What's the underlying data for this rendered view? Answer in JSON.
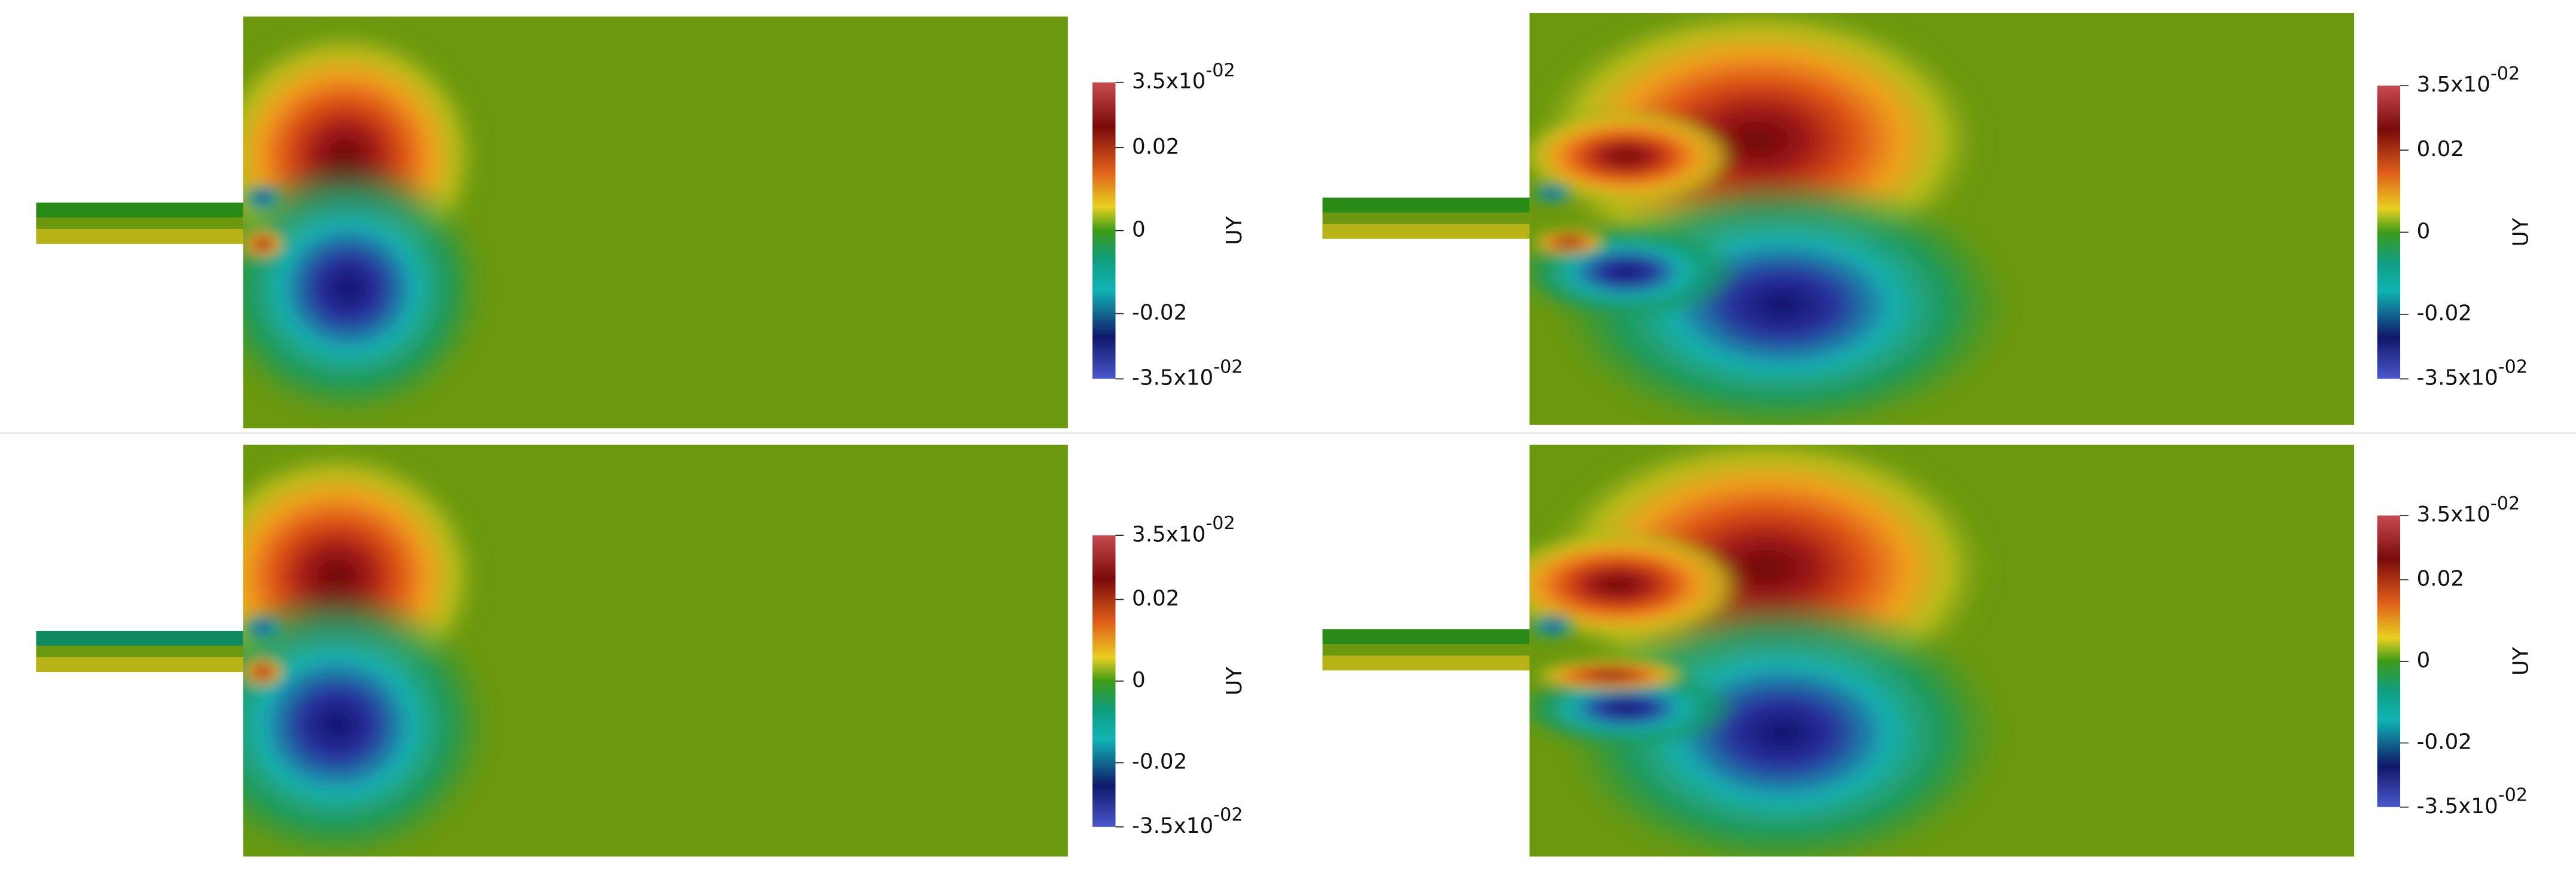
{
  "panels": [
    {
      "colorbar": {
        "title": "UY",
        "ticks": [
          {
            "base": "3.5x10",
            "exponent": "-02"
          },
          {
            "base": "0.02"
          },
          {
            "base": "0"
          },
          {
            "base": "-0.02"
          },
          {
            "base": "-3.5x10",
            "exponent": "-02"
          }
        ]
      }
    },
    {
      "colorbar": {
        "title": "UY",
        "ticks": [
          {
            "base": "3.5x10",
            "exponent": "-02"
          },
          {
            "base": "0.02"
          },
          {
            "base": "0"
          },
          {
            "base": "-0.02"
          },
          {
            "base": "-3.5x10",
            "exponent": "-02"
          }
        ]
      }
    },
    {
      "colorbar": {
        "title": "UY",
        "ticks": [
          {
            "base": "3.5x10",
            "exponent": "-02"
          },
          {
            "base": "0.02"
          },
          {
            "base": "0"
          },
          {
            "base": "-0.02"
          },
          {
            "base": "-3.5x10",
            "exponent": "-02"
          }
        ]
      }
    },
    {
      "colorbar": {
        "title": "UY",
        "ticks": [
          {
            "base": "3.5x10",
            "exponent": "-02"
          },
          {
            "base": "0.02"
          },
          {
            "base": "0"
          },
          {
            "base": "-0.02"
          },
          {
            "base": "-3.5x10",
            "exponent": "-02"
          }
        ]
      }
    }
  ]
}
